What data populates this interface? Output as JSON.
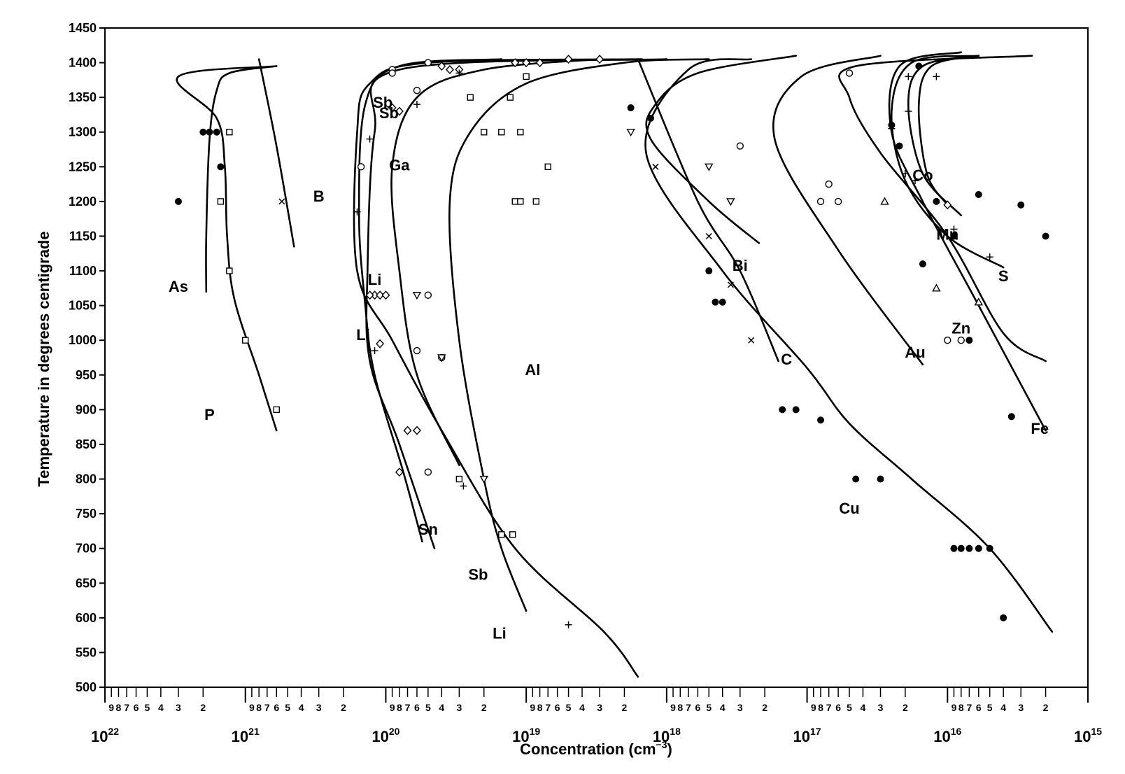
{
  "chart_data": {
    "type": "line",
    "title": "",
    "ylabel": "Temperature in degrees centigrade",
    "xlabel_main": "Concentration (cm",
    "xlabel_sup": "−3",
    "xlabel_tail": ")",
    "x_scale": "log",
    "x_reversed": true,
    "xlim": [
      1e+22,
      1000000000000000.0
    ],
    "ylim": [
      500,
      1450
    ],
    "yticks": [
      500,
      550,
      600,
      650,
      700,
      750,
      800,
      850,
      900,
      950,
      1000,
      1050,
      1100,
      1150,
      1200,
      1250,
      1300,
      1350,
      1400,
      1450
    ],
    "x_decade_labels": [
      {
        "value": 1e+22,
        "base": "10",
        "exp": "22"
      },
      {
        "value": 1e+21,
        "base": "10",
        "exp": "21"
      },
      {
        "value": 1e+20,
        "base": "10",
        "exp": "20"
      },
      {
        "value": 1e+19,
        "base": "10",
        "exp": "19"
      },
      {
        "value": 1e+18,
        "base": "10",
        "exp": "18"
      },
      {
        "value": 1e+17,
        "base": "10",
        "exp": "17"
      },
      {
        "value": 1e+16,
        "base": "10",
        "exp": "16"
      },
      {
        "value": 1000000000000000.0,
        "base": "10",
        "exp": "15"
      }
    ],
    "x_minor_labels": [
      "9",
      "8",
      "7",
      "6",
      "5",
      "4",
      "3",
      "2"
    ],
    "grid": false,
    "legend": "none",
    "series": [
      {
        "name": "P",
        "label_at": [
          1.8e+21,
          885
        ],
        "points": [
          [
            6e+20,
            870
          ],
          [
            8e+20,
            950
          ],
          [
            1.2e+21,
            1060
          ],
          [
            1.35e+21,
            1150
          ],
          [
            1.4e+21,
            1250
          ],
          [
            1.6e+21,
            1320
          ],
          [
            3e+21,
            1380
          ],
          [
            6e+20,
            1395
          ]
        ]
      },
      {
        "name": "As",
        "label_at": [
          3e+21,
          1070
        ],
        "points": [
          [
            1.9e+21,
            1070
          ],
          [
            1.9e+21,
            1150
          ],
          [
            1.8e+21,
            1290
          ],
          [
            1.6e+21,
            1360
          ],
          [
            1.3e+21,
            1385
          ],
          [
            6e+20,
            1395
          ]
        ]
      },
      {
        "name": "B",
        "label_at": [
          3e+20,
          1200
        ],
        "points": [
          [
            8e+20,
            1405
          ],
          [
            6e+20,
            1280
          ],
          [
            4.5e+20,
            1135
          ]
        ]
      },
      {
        "name": "Sb",
        "label_at": [
          9.5e+19,
          1320
        ],
        "points": [
          [
            5.5e+19,
            710
          ],
          [
            7.5e+19,
            810
          ],
          [
            1.2e+20,
            950
          ],
          [
            1.4e+20,
            1050
          ],
          [
            1.55e+20,
            1180
          ],
          [
            1.4e+20,
            1340
          ],
          [
            8e+19,
            1395
          ],
          [
            1.5e+19,
            1405
          ]
        ]
      },
      {
        "name": "Sn",
        "label_at": [
          5e+19,
          720
        ],
        "points": [
          [
            4.5e+19,
            700
          ],
          [
            8e+19,
            850
          ],
          [
            1.3e+20,
            970
          ],
          [
            1.35e+20,
            1100
          ],
          [
            1.2e+20,
            1300
          ],
          [
            8e+19,
            1390
          ],
          [
            1e+18,
            1405
          ]
        ]
      },
      {
        "name": "Ga",
        "label_at": [
          8e+19,
          1245
        ],
        "points": [
          [
            3e+19,
            820
          ],
          [
            6e+19,
            950
          ],
          [
            8e+19,
            1100
          ],
          [
            9e+19,
            1250
          ],
          [
            6e+19,
            1350
          ],
          [
            2e+19,
            1390
          ],
          [
            3e+18,
            1405
          ]
        ]
      },
      {
        "name": "Li",
        "label_at": [
          1.2e+20,
          1080
        ],
        "points": [
          [
            1.6e+18,
            515
          ],
          [
            2.8e+18,
            580
          ],
          [
            1.2e+19,
            700
          ],
          [
            4e+19,
            870
          ],
          [
            9e+19,
            1000
          ],
          [
            1.6e+20,
            1100
          ],
          [
            1.6e+20,
            1300
          ],
          [
            1.3e+20,
            1370
          ],
          [
            5e+19,
            1400
          ],
          [
            1.5e+18,
            1405
          ]
        ]
      },
      {
        "name": "Al",
        "label_at": [
          9e+18,
          950
        ],
        "points": [
          [
            1e+19,
            610
          ],
          [
            1.5e+19,
            700
          ],
          [
            2e+19,
            800
          ],
          [
            3e+19,
            1000
          ],
          [
            3.5e+19,
            1200
          ],
          [
            2.5e+19,
            1300
          ],
          [
            1e+19,
            1370
          ],
          [
            2e+18,
            1400
          ],
          [
            5e+17,
            1405
          ]
        ]
      },
      {
        "name": "C",
        "label_at": [
          1.4e+17,
          965
        ],
        "points": [
          [
            1.6e+17,
            970
          ],
          [
            3e+17,
            1100
          ],
          [
            6e+17,
            1200
          ],
          [
            1.6e+18,
            1405
          ]
        ]
      },
      {
        "name": "Bi",
        "label_at": [
          3e+17,
          1100
        ],
        "points": [
          [
            2.2e+17,
            1140
          ],
          [
            5e+17,
            1200
          ],
          [
            1.3e+18,
            1290
          ],
          [
            1.2e+18,
            1340
          ],
          [
            6e+17,
            1385
          ],
          [
            1.2e+17,
            1410
          ]
        ]
      },
      {
        "name": "Cu",
        "label_at": [
          5e+16,
          750
        ],
        "points": [
          [
            1800000000000000.0,
            580
          ],
          [
            5000000000000000.0,
            700
          ],
          [
            1.8e+16,
            800
          ],
          [
            5e+16,
            880
          ],
          [
            1e+17,
            960
          ],
          [
            4e+17,
            1100
          ],
          [
            1.4e+18,
            1270
          ],
          [
            7e+17,
            1390
          ],
          [
            2.5e+17,
            1405
          ]
        ]
      },
      {
        "name": "Au",
        "label_at": [
          1.7e+16,
          975
        ],
        "points": [
          [
            1.5e+16,
            965
          ],
          [
            6e+16,
            1130
          ],
          [
            1.7e+17,
            1290
          ],
          [
            1.1e+17,
            1380
          ],
          [
            3e+16,
            1410
          ]
        ]
      },
      {
        "name": "Zn",
        "label_at": [
          8000000000000000.0,
          1010
        ],
        "points": [
          [
            2000000000000000.0,
            970
          ],
          [
            4000000000000000.0,
            1010
          ],
          [
            1e+16,
            1150
          ],
          [
            3e+16,
            1270
          ],
          [
            5e+16,
            1350
          ],
          [
            4.5e+16,
            1395
          ],
          [
            2500000000000000.0,
            1410
          ]
        ]
      },
      {
        "name": "Fe",
        "label_at": [
          2200000000000000.0,
          865
        ],
        "points": [
          [
            2000000000000000.0,
            870
          ],
          [
            6000000000000000.0,
            1050
          ],
          [
            1.5e+16,
            1200
          ],
          [
            2.5e+16,
            1300
          ],
          [
            2.2e+16,
            1395
          ],
          [
            8000000000000000.0,
            1415
          ]
        ]
      },
      {
        "name": "S",
        "label_at": [
          4000000000000000.0,
          1085
        ],
        "points": [
          [
            4000000000000000.0,
            1105
          ],
          [
            1e+16,
            1150
          ],
          [
            2e+16,
            1230
          ],
          [
            2.5e+16,
            1330
          ],
          [
            1.8e+16,
            1400
          ],
          [
            6000000000000000.0,
            1410
          ]
        ]
      },
      {
        "name": "Mn",
        "label_at": [
          1e+16,
          1145
        ],
        "points": [
          [
            8000000000000000.0,
            1180
          ],
          [
            1.5e+16,
            1240
          ],
          [
            1.9e+16,
            1340
          ],
          [
            1.5e+16,
            1395
          ],
          [
            6000000000000000.0,
            1410
          ]
        ]
      },
      {
        "name": "Co",
        "label_at": [
          1.5e+16,
          1230
        ],
        "points": [
          [
            1e+16,
            1195
          ],
          [
            1.4e+16,
            1240
          ],
          [
            1.6e+16,
            1340
          ],
          [
            1.3e+16,
            1395
          ],
          [
            6000000000000000.0,
            1410
          ]
        ]
      }
    ],
    "extra_labels": [
      {
        "text": "Sb",
        "at": [
          1.05e+20,
          1335
        ]
      },
      {
        "text": "Li",
        "at": [
          1.45e+20,
          1000
        ]
      },
      {
        "text": "Sb",
        "at": [
          2.2e+19,
          655
        ]
      },
      {
        "text": "Li",
        "at": [
          1.55e+19,
          570
        ]
      }
    ],
    "markers": [
      {
        "shape": "dot",
        "points": [
          [
            3e+21,
            1200
          ],
          [
            2e+21,
            1300
          ],
          [
            1.8e+21,
            1300
          ],
          [
            1.6e+21,
            1300
          ],
          [
            1.5e+21,
            1250
          ],
          [
            1.8e+18,
            1335
          ],
          [
            1.3e+18,
            1320
          ],
          [
            5e+17,
            1100
          ],
          [
            4.5e+17,
            1055
          ],
          [
            4e+17,
            1055
          ],
          [
            1.5e+17,
            900
          ],
          [
            1.2e+17,
            900
          ],
          [
            8e+16,
            885
          ],
          [
            4.5e+16,
            800
          ],
          [
            3e+16,
            800
          ],
          [
            1.6e+16,
            1395
          ],
          [
            2.5e+16,
            1310
          ],
          [
            2.2e+16,
            1280
          ],
          [
            6000000000000000.0,
            1210
          ],
          [
            3000000000000000.0,
            1195
          ],
          [
            2000000000000000.0,
            1150
          ],
          [
            9000000000000000.0,
            1150
          ],
          [
            1.2e+16,
            1200
          ],
          [
            1.5e+16,
            1110
          ],
          [
            7000000000000000.0,
            1000
          ],
          [
            3500000000000000.0,
            890
          ],
          [
            9000000000000000.0,
            700
          ],
          [
            8000000000000000.0,
            700
          ],
          [
            7000000000000000.0,
            700
          ],
          [
            6000000000000000.0,
            700
          ],
          [
            5000000000000000.0,
            700
          ],
          [
            4000000000000000.0,
            600
          ]
        ]
      },
      {
        "shape": "square",
        "points": [
          [
            1.3e+21,
            1300
          ],
          [
            1.5e+21,
            1200
          ],
          [
            1.3e+21,
            1100
          ],
          [
            1e+21,
            1000
          ],
          [
            6e+20,
            900
          ],
          [
            2e+19,
            1300
          ],
          [
            1.5e+19,
            1300
          ],
          [
            1.1e+19,
            1300
          ],
          [
            1.3e+19,
            1350
          ],
          [
            1e+19,
            1380
          ],
          [
            7e+18,
            1250
          ],
          [
            1.2e+19,
            1200
          ],
          [
            1.1e+19,
            1200
          ],
          [
            8.5e+18,
            1200
          ],
          [
            2.5e+19,
            1350
          ],
          [
            3e+19,
            800
          ],
          [
            1.5e+19,
            720
          ],
          [
            1.25e+19,
            720
          ]
        ]
      },
      {
        "shape": "circle",
        "points": [
          [
            9e+19,
            1390
          ],
          [
            5e+19,
            1400
          ],
          [
            6e+19,
            1360
          ],
          [
            1.5e+20,
            1250
          ],
          [
            9e+19,
            1385
          ],
          [
            5e+19,
            1065
          ],
          [
            6e+19,
            985
          ],
          [
            4e+19,
            975
          ],
          [
            5e+19,
            810
          ],
          [
            3e+17,
            1280
          ],
          [
            8e+16,
            1200
          ],
          [
            6e+16,
            1200
          ],
          [
            5e+16,
            1385
          ],
          [
            7e+16,
            1225
          ],
          [
            1e+16,
            1000
          ],
          [
            8000000000000000.0,
            1000
          ]
        ]
      },
      {
        "shape": "diamond",
        "points": [
          [
            1.2e+20,
            1065
          ],
          [
            1.1e+20,
            1065
          ],
          [
            1.3e+20,
            1065
          ],
          [
            1e+20,
            1065
          ],
          [
            1.1e+20,
            995
          ],
          [
            9e+19,
            1335
          ],
          [
            8e+19,
            1330
          ],
          [
            7e+19,
            870
          ],
          [
            6e+19,
            870
          ],
          [
            8e+19,
            810
          ],
          [
            4e+19,
            1395
          ],
          [
            3.5e+19,
            1390
          ],
          [
            3e+19,
            1390
          ],
          [
            1.2e+19,
            1400
          ],
          [
            1e+19,
            1400
          ],
          [
            8e+18,
            1400
          ],
          [
            5e+18,
            1405
          ],
          [
            3e+18,
            1405
          ],
          [
            1e+16,
            1195
          ]
        ]
      },
      {
        "shape": "plus",
        "points": [
          [
            1.3e+20,
            1290
          ],
          [
            1.6e+20,
            1185
          ],
          [
            1.2e+20,
            985
          ],
          [
            6e+19,
            1340
          ],
          [
            3e+19,
            1385
          ],
          [
            5e+18,
            590
          ],
          [
            2.8e+19,
            790
          ],
          [
            2.5e+16,
            1305
          ],
          [
            1.9e+16,
            1330
          ],
          [
            2e+16,
            1240
          ],
          [
            2e+16,
            1240
          ],
          [
            1.7e+16,
            1230
          ],
          [
            1.2e+16,
            1380
          ],
          [
            9000000000000000.0,
            1160
          ],
          [
            5000000000000000.0,
            1120
          ],
          [
            1.9e+16,
            1380
          ]
        ]
      },
      {
        "shape": "cross",
        "points": [
          [
            5.5e+20,
            1200
          ],
          [
            1.2e+18,
            1250
          ],
          [
            5e+17,
            1150
          ],
          [
            3.5e+17,
            1080
          ],
          [
            2.5e+17,
            1000
          ]
        ]
      },
      {
        "shape": "triangle-down",
        "points": [
          [
            1.8e+18,
            1300
          ],
          [
            5e+17,
            1250
          ],
          [
            3.5e+17,
            1200
          ],
          [
            6e+19,
            1065
          ],
          [
            4e+19,
            975
          ],
          [
            2e+19,
            800
          ]
        ]
      },
      {
        "shape": "triangle-up",
        "points": [
          [
            2.8e+16,
            1200
          ],
          [
            6000000000000000.0,
            1055
          ],
          [
            1.2e+16,
            1075
          ]
        ]
      }
    ]
  }
}
